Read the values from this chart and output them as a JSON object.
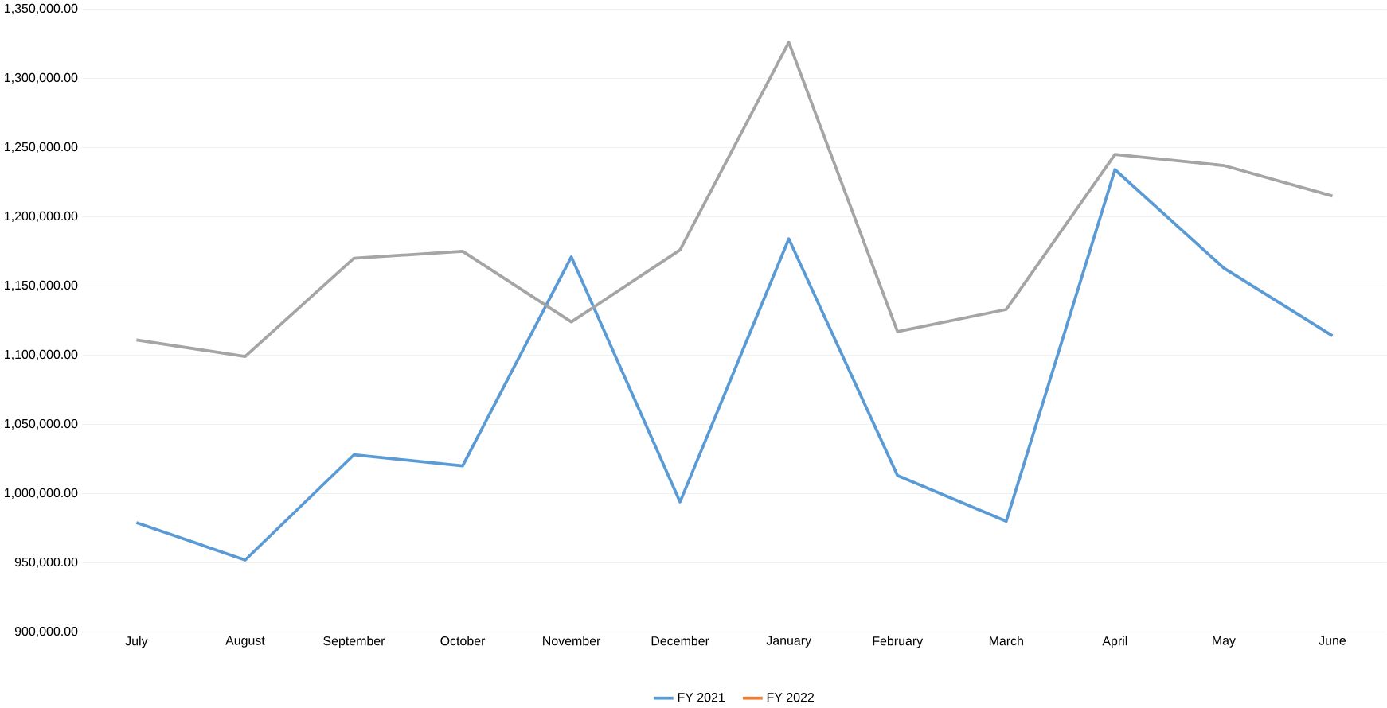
{
  "chart_data": {
    "type": "line",
    "categories": [
      "July",
      "August",
      "September",
      "October",
      "November",
      "December",
      "January",
      "February",
      "March",
      "April",
      "May",
      "June"
    ],
    "series": [
      {
        "name": "FY 2021",
        "color": "#5b9bd5",
        "values": [
          979000,
          952000,
          1028000,
          1020000,
          1171000,
          994000,
          1184000,
          1013000,
          980000,
          1234000,
          1163000,
          1114000
        ]
      },
      {
        "name": "FY 2022",
        "color": "#ed7d31",
        "values": [
          null,
          null,
          null,
          null,
          null,
          null,
          null,
          null,
          null,
          null,
          null,
          null
        ]
      },
      {
        "color": "#a5a5a5",
        "values": [
          1111000,
          1099000,
          1170000,
          1175000,
          1124000,
          1176000,
          1326000,
          1117000,
          1133000,
          1245000,
          1237000,
          1215000
        ]
      }
    ],
    "ylim": [
      900000,
      1350000
    ],
    "yticks": [
      {
        "value": 900000,
        "label": "900,000.00"
      },
      {
        "value": 950000,
        "label": "950,000.00"
      },
      {
        "value": 1000000,
        "label": "1,000,000.00"
      },
      {
        "value": 1050000,
        "label": "1,050,000.00"
      },
      {
        "value": 1100000,
        "label": "1,100,000.00"
      },
      {
        "value": 1150000,
        "label": "1,150,000.00"
      },
      {
        "value": 1200000,
        "label": "1,200,000.00"
      },
      {
        "value": 1250000,
        "label": "1,250,000.00"
      },
      {
        "value": 1300000,
        "label": "1,300,000.00"
      },
      {
        "value": 1350000,
        "label": "1,350,000.00"
      }
    ],
    "grid": "y",
    "legend": "bottom",
    "marker": "none",
    "line_style": "solid"
  }
}
